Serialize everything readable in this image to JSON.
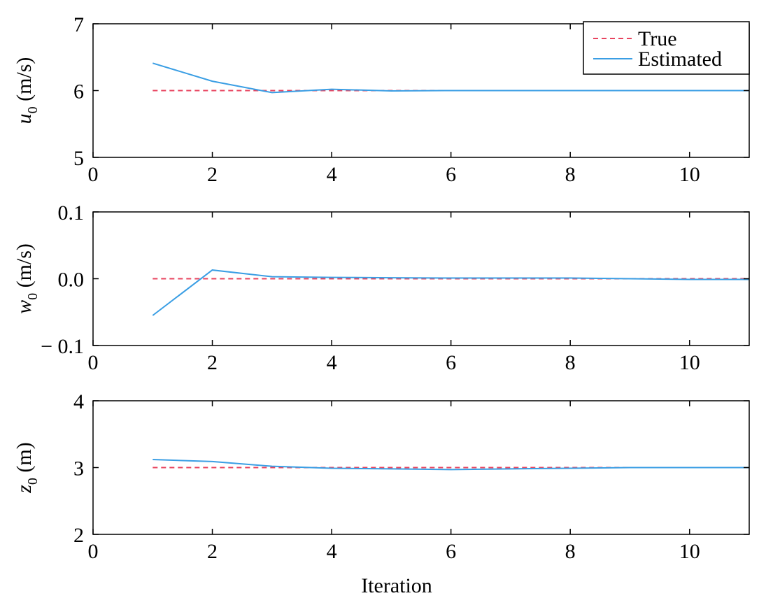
{
  "chart_data": [
    {
      "type": "line",
      "ylabel": {
        "symbol": "u",
        "subscript": "0",
        "unit": " (m/s)"
      },
      "xlabel": "",
      "xlim": [
        0,
        11
      ],
      "ylim": [
        5,
        7
      ],
      "xticks": [
        "0",
        "2",
        "4",
        "6",
        "8",
        "10"
      ],
      "yticks": [
        "5",
        "6",
        "7"
      ],
      "legend": {
        "placement": "top-right",
        "entries": [
          "True",
          "Estimated"
        ]
      },
      "series": [
        {
          "name": "True",
          "style": "dashed",
          "color": "#e8445f",
          "x": [
            1,
            2,
            3,
            4,
            5,
            6,
            7,
            8,
            9,
            10,
            11
          ],
          "values": [
            6,
            6,
            6,
            6,
            6,
            6,
            6,
            6,
            6,
            6,
            6
          ]
        },
        {
          "name": "Estimated",
          "style": "solid",
          "color": "#3a9ee4",
          "x": [
            1,
            2,
            3,
            4,
            5,
            6,
            7,
            8,
            9,
            10,
            11
          ],
          "values": [
            6.41,
            6.14,
            5.97,
            6.02,
            5.995,
            6.0,
            6.0,
            6.0,
            6.0,
            6.0,
            6.0
          ]
        }
      ]
    },
    {
      "type": "line",
      "ylabel": {
        "symbol": "w",
        "subscript": "0",
        "unit": " (m/s)"
      },
      "xlabel": "",
      "xlim": [
        0,
        11
      ],
      "ylim": [
        -0.1,
        0.1
      ],
      "xticks": [
        "0",
        "2",
        "4",
        "6",
        "8",
        "10"
      ],
      "yticks": [
        "− 0.1",
        "0.0",
        "0.1"
      ],
      "series": [
        {
          "name": "True",
          "style": "dashed",
          "color": "#e8445f",
          "x": [
            1,
            2,
            3,
            4,
            5,
            6,
            7,
            8,
            9,
            10,
            11
          ],
          "values": [
            0,
            0,
            0,
            0,
            0,
            0,
            0,
            0,
            0,
            0,
            0
          ]
        },
        {
          "name": "Estimated",
          "style": "solid",
          "color": "#3a9ee4",
          "x": [
            1,
            2,
            3,
            4,
            5,
            6,
            7,
            8,
            9,
            10,
            11
          ],
          "values": [
            -0.055,
            0.013,
            0.003,
            0.002,
            0.0015,
            0.001,
            0.001,
            0.001,
            0.0,
            -0.001,
            -0.001
          ]
        }
      ]
    },
    {
      "type": "line",
      "ylabel": {
        "symbol": "z",
        "subscript": "0",
        "unit": " (m)"
      },
      "xlabel": "Iteration",
      "xlim": [
        0,
        11
      ],
      "ylim": [
        2,
        4
      ],
      "xticks": [
        "0",
        "2",
        "4",
        "6",
        "8",
        "10"
      ],
      "yticks": [
        "2",
        "3",
        "4"
      ],
      "series": [
        {
          "name": "True",
          "style": "dashed",
          "color": "#e8445f",
          "x": [
            1,
            2,
            3,
            4,
            5,
            6,
            7,
            8,
            9,
            10,
            11
          ],
          "values": [
            3,
            3,
            3,
            3,
            3,
            3,
            3,
            3,
            3,
            3,
            3
          ]
        },
        {
          "name": "Estimated",
          "style": "solid",
          "color": "#3a9ee4",
          "x": [
            1,
            2,
            3,
            4,
            5,
            6,
            7,
            8,
            9,
            10,
            11
          ],
          "values": [
            3.12,
            3.09,
            3.02,
            2.99,
            2.98,
            2.97,
            2.98,
            2.99,
            3.0,
            3.0,
            3.0
          ]
        }
      ]
    }
  ]
}
